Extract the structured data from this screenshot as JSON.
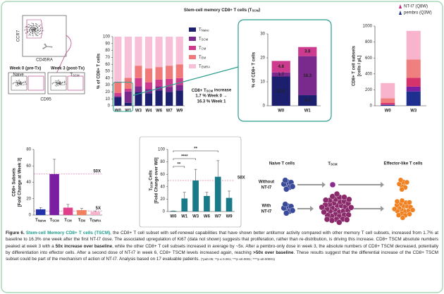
{
  "title": {
    "text": "Stem-cell memory CD8+ T cells (T",
    "sub": "SCM",
    "end": ")"
  },
  "flow": {
    "y_axis": "CCR7",
    "x_axis": "CD45RA",
    "week0": "Week 0 (pre-Tx)",
    "week3": "Week 3 (post-Tx)",
    "gate_naive": "Naive",
    "gate_tscm": {
      "text": "T",
      "sub": "SCM"
    },
    "x_axis2": "CD95"
  },
  "chart_data": [
    {
      "type": "stacked_bar",
      "y_label": [
        "% of CD8+ T cells"
      ],
      "categories": [
        "W0",
        "W1",
        "W3",
        "W4",
        "W6",
        "W7",
        "W9"
      ],
      "series": [
        {
          "name": {
            "text": "T",
            "sub": "Naive"
          },
          "color": "#1b1f6e",
          "values": [
            12.2,
            4.4,
            20,
            18,
            22,
            20,
            22
          ]
        },
        {
          "name": {
            "text": "T",
            "sub": "SCM"
          },
          "color": "#7a2a8c",
          "values": [
            1.7,
            16.3,
            8,
            6,
            6,
            7,
            8
          ]
        },
        {
          "name": {
            "text": "T",
            "sub": "CM"
          },
          "color": "#cc3b8e",
          "values": [
            4.8,
            3.8,
            12,
            10,
            10,
            12,
            10
          ]
        },
        {
          "name": {
            "text": "T",
            "sub": "EM"
          },
          "color": "#f07a7a",
          "values": [
            16,
            16,
            18,
            20,
            18,
            19,
            20
          ]
        },
        {
          "name": {
            "text": "T",
            "sub": "EMRA"
          },
          "color": "#f7c0d6",
          "values": [
            65.3,
            59.5,
            42,
            46,
            44,
            42,
            40
          ]
        }
      ],
      "ylim": [
        0,
        100
      ],
      "yticks": [
        0,
        10,
        20,
        30,
        40,
        50,
        60,
        70,
        80,
        90,
        100
      ],
      "annotation": [
        {
          "text": "CD8+ T",
          "sub": "SCM",
          "end": " increase"
        },
        "1.7 % Week 0 →",
        "16.3 % Week 1"
      ]
    },
    {
      "type": "stacked_bar",
      "y_label": [
        "% of CD8+ T cells"
      ],
      "data_labels": true,
      "categories": [
        "W0",
        "W1"
      ],
      "series": [
        {
          "color": "#1b1f6e",
          "values": [
            12.2,
            4.4
          ]
        },
        {
          "color": "#7a2a8c",
          "values": [
            1.7,
            16.3
          ]
        },
        {
          "color": "#cc3b8e",
          "values": [
            4.8,
            3.8
          ]
        }
      ],
      "ylim": [
        0,
        30
      ],
      "yticks": [
        0,
        10,
        20,
        30
      ]
    },
    {
      "type": "stacked_bar",
      "y_label": [
        "CD8+ T cell subsets",
        "[cells / µL]"
      ],
      "categories": [
        "W0",
        "W3"
      ],
      "series": [
        {
          "color": "#1f2f8f",
          "values": [
            10,
            180
          ]
        },
        {
          "color": "#7b1fa2",
          "values": [
            5,
            60
          ]
        },
        {
          "color": "#d6336c",
          "values": [
            20,
            110
          ]
        },
        {
          "color": "#f08080",
          "values": [
            60,
            230
          ]
        },
        {
          "color": "#f8b4cc",
          "values": [
            190,
            360
          ]
        }
      ],
      "ylim": [
        0,
        1000
      ],
      "yticks": [
        0,
        200,
        400,
        600,
        800,
        1000
      ],
      "legend_items": [
        {
          "name": "NT-I7 (Q8W)",
          "color": "#c0207a"
        },
        {
          "name": "pembro (Q3W)",
          "color": "#1a2a8a"
        }
      ]
    },
    {
      "type": "bar",
      "y_label": [
        "CD8+ Subsets",
        "[Fold Change at Week 3]"
      ],
      "categories": [
        {
          "text": "T",
          "sub": "Naive"
        },
        {
          "text": "T",
          "sub": "SCM"
        },
        {
          "text": "T",
          "sub": "CM"
        },
        {
          "text": "T",
          "sub": "EM"
        },
        {
          "text": "T",
          "sub": "EMRA"
        }
      ],
      "values": [
        7,
        50,
        9,
        6,
        4
      ],
      "errors": [
        2,
        18,
        4,
        2,
        1
      ],
      "colors": [
        "#2233aa",
        "#7b1fa2",
        "#e0408a",
        "#f08060",
        "#f7b0cc"
      ],
      "ref_lines": [
        {
          "value": 50,
          "label": "50X"
        },
        {
          "value": 5,
          "label": "5X"
        }
      ],
      "ylim": [
        0,
        80
      ],
      "yticks": [
        0,
        20,
        40,
        60,
        80
      ]
    },
    {
      "type": "bar",
      "y_label": [
        {
          "text": "T",
          "sub": "SCM",
          "end": " Cells"
        },
        "[Fold Change over W0]"
      ],
      "categories": [
        "W0",
        "W1",
        "W3",
        "W6",
        "W7",
        "W9"
      ],
      "values": [
        1,
        21,
        50,
        25,
        56,
        22
      ],
      "errors": [
        0,
        10,
        18,
        6,
        26,
        11
      ],
      "color": "#1a7a8a",
      "ref_lines": [
        {
          "value": 50,
          "label": "50X"
        }
      ],
      "significance": [
        {
          "from": "W0",
          "to": "W1",
          "label": "**"
        },
        {
          "from": "W0",
          "to": "W3",
          "label": "****"
        },
        {
          "from": "W0",
          "to": "W7",
          "label": "**"
        }
      ],
      "ylim": [
        0,
        100
      ],
      "yticks": [
        0,
        20,
        40,
        60,
        80,
        100
      ]
    }
  ],
  "diagram": {
    "naive": "Naive T cells",
    "tscm": {
      "text": "T",
      "sub": "SCM"
    },
    "effector": "Effector-like T cells",
    "row_without": [
      "Without",
      "NT-I7"
    ],
    "row_with": [
      "With",
      "NT-I7"
    ]
  },
  "caption": {
    "segments": [
      {
        "text": "Figure 6. ",
        "bold": true
      },
      {
        "text": "Stem-cell Memory CD8+ T cells (TSCM)",
        "bold": true,
        "color": "#1a9a8a"
      },
      {
        "text": ", the CD8+ T cell subset with self-renewal capabilities that have shown better antitumor activity compared with other memory T cell subsets, increased from 1.7% at baseline to 16.3% one week after the first NT-I7 dose. The associated upregulation of Ki67 (data not shown) suggests that proliferation, rather than re-distribution, is driving this increase. CD8+ TSCM absolute numbers peaked at week 3 with a "
      },
      {
        "text": "50x increase over baseline",
        "bold": true
      },
      {
        "text": ", while the other CD8+ T cell subsets increased in average by ~5x. After a pembro-only dose in week 3, the absolute numbers of CD8+ TSCM decreased, potentially by differentiation into effector cells. After a second dose of NT-I7 in week 6, CD8+ TSCM levels increased again, reaching "
      },
      {
        "text": ">50x over baseline",
        "bold": true
      },
      {
        "text": ". These results suggest that the differential increase of the CD8+ TSCM subset could be part of the mechanism of action of NT-I7. Analysis based on 17 evaluable patients. "
      },
      {
        "text": "(*p≤0.05; **p ≤ 0.001; ***p ≤0.0001; ****p ≤0.00001)",
        "small": true
      }
    ]
  }
}
